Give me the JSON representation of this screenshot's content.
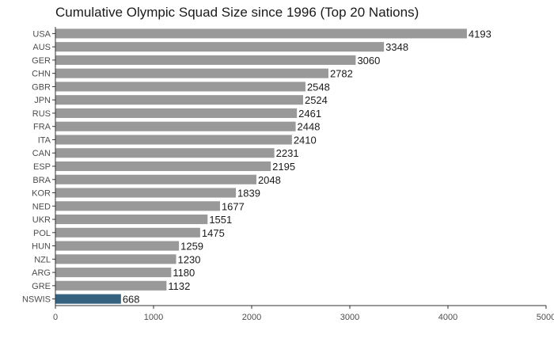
{
  "chart_data": {
    "type": "bar",
    "orientation": "horizontal",
    "title": "Cumulative Olympic Squad Size since 1996 (Top 20 Nations)",
    "categories": [
      "USA",
      "AUS",
      "GER",
      "CHN",
      "GBR",
      "JPN",
      "RUS",
      "FRA",
      "ITA",
      "CAN",
      "ESP",
      "BRA",
      "KOR",
      "NED",
      "UKR",
      "POL",
      "HUN",
      "NZL",
      "ARG",
      "GRE",
      "NSWIS"
    ],
    "values": [
      4193,
      3348,
      3060,
      2782,
      2548,
      2524,
      2461,
      2448,
      2410,
      2231,
      2195,
      2048,
      1839,
      1677,
      1551,
      1475,
      1259,
      1230,
      1180,
      1132,
      668
    ],
    "highlight": "NSWIS",
    "colors": {
      "bar": "#999999",
      "highlight": "#35627f",
      "axis": "#333333"
    },
    "xlim": [
      0,
      5000
    ],
    "xticks": [
      0,
      1000,
      2000,
      3000,
      4000,
      5000
    ],
    "grid": false,
    "xlabel": "",
    "ylabel": ""
  }
}
